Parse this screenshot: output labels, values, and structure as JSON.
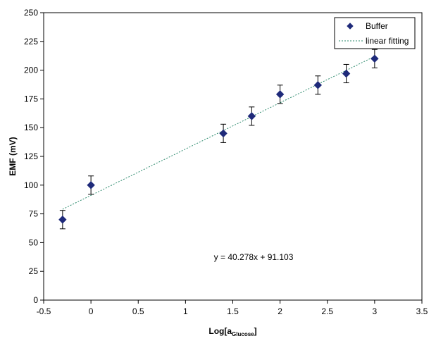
{
  "chart_data": {
    "type": "scatter",
    "title": "",
    "xlabel_main": "Log[a",
    "xlabel_sub": "Glucose",
    "xlabel_end": "]",
    "ylabel": "EMF (mV)",
    "xlim": [
      -0.5,
      3.5
    ],
    "ylim": [
      0,
      250
    ],
    "x_ticks": [
      -0.5,
      0,
      0.5,
      1,
      1.5,
      2,
      2.5,
      3,
      3.5
    ],
    "x_tick_labels": [
      "-0.5",
      "0",
      "0.5",
      "1",
      "1.5",
      "2",
      "2.5",
      "3",
      "3.5"
    ],
    "y_ticks": [
      0,
      25,
      50,
      75,
      100,
      125,
      150,
      175,
      200,
      225,
      250
    ],
    "y_tick_labels": [
      "0",
      "25",
      "50",
      "75",
      "100",
      "125",
      "150",
      "175",
      "200",
      "225",
      "250"
    ],
    "series": [
      {
        "name": "Buffer",
        "marker": "diamond",
        "color": "#1f2a7a",
        "x": [
          -0.3,
          0,
          1.4,
          1.7,
          2,
          2.4,
          2.7,
          3
        ],
        "y": [
          70,
          100,
          145,
          160,
          179,
          187,
          197,
          210
        ],
        "error": [
          8,
          8,
          8,
          8,
          8,
          8,
          8,
          8
        ]
      }
    ],
    "fit": {
      "name": "linear fitting",
      "slope": 40.278,
      "intercept": 91.103,
      "x_range": [
        -0.3,
        3
      ],
      "color": "#2e8b6e",
      "equation": "y = 40.278x + 91.103",
      "equation_pos": [
        1.3,
        35
      ]
    },
    "legend_position": "top-right"
  }
}
